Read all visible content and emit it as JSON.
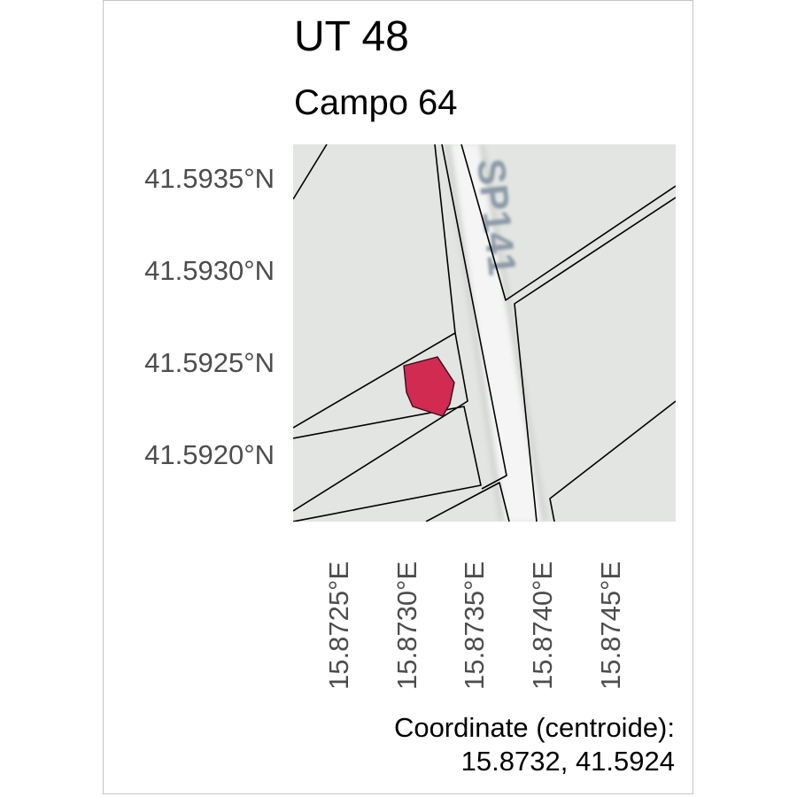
{
  "title": "UT 48",
  "subtitle": "Campo 64",
  "map": {
    "street_label": "SP141",
    "colors": {
      "background": "#e3e5e2",
      "road": "#f4f5f4",
      "parcel_outline": "#000000",
      "highlight_fill": "#d12b52",
      "street_label": "#8b99a6"
    }
  },
  "axes": {
    "latitude_ticks": [
      "41.5935°N",
      "41.5930°N",
      "41.5925°N",
      "41.5920°N"
    ],
    "longitude_ticks": [
      "15.8725°E",
      "15.8730°E",
      "15.8735°E",
      "15.8740°E",
      "15.8745°E"
    ]
  },
  "caption": {
    "line1": "Coordinate (centroide):",
    "line2": "15.8732, 41.5924"
  }
}
